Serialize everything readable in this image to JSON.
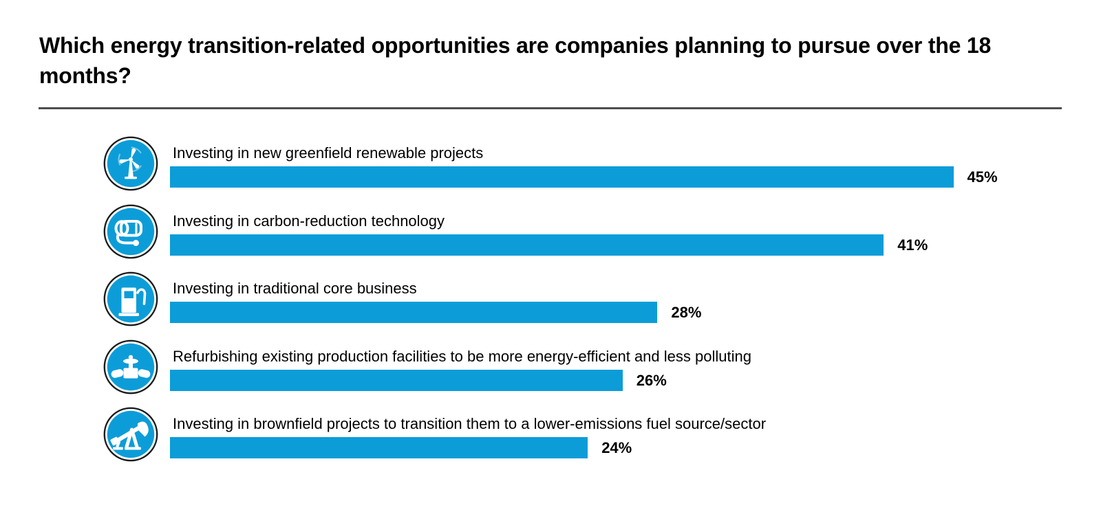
{
  "title": "Which energy transition-related opportunities are companies planning to pursue over the 18 months?",
  "chart_data": {
    "type": "bar",
    "orientation": "horizontal",
    "unit": "%",
    "categories": [
      "Investing in new greenfield renewable projects",
      "Investing in carbon-reduction technology",
      "Investing in traditional core business",
      "Refurbishing existing production facilities to be more energy-efficient and less polluting",
      "Investing in brownfield projects to transition them to a lower-emissions fuel source/sector"
    ],
    "values": [
      45,
      41,
      28,
      26,
      24
    ],
    "value_labels": [
      "45%",
      "41%",
      "28%",
      "26%",
      "24%"
    ],
    "icons": [
      "wind-turbine-icon",
      "carbon-capture-tank-icon",
      "fuel-pump-icon",
      "pipeline-valve-icon",
      "oil-pump-jack-icon"
    ],
    "xlim": [
      0,
      50
    ],
    "grid": false,
    "legend": false,
    "bar_color": "#0C9DD8"
  },
  "colors": {
    "accent_blue": "#0C9DD8",
    "divider_gray": "#4D4D4D",
    "text_black": "#000000",
    "background": "#FFFFFF"
  }
}
